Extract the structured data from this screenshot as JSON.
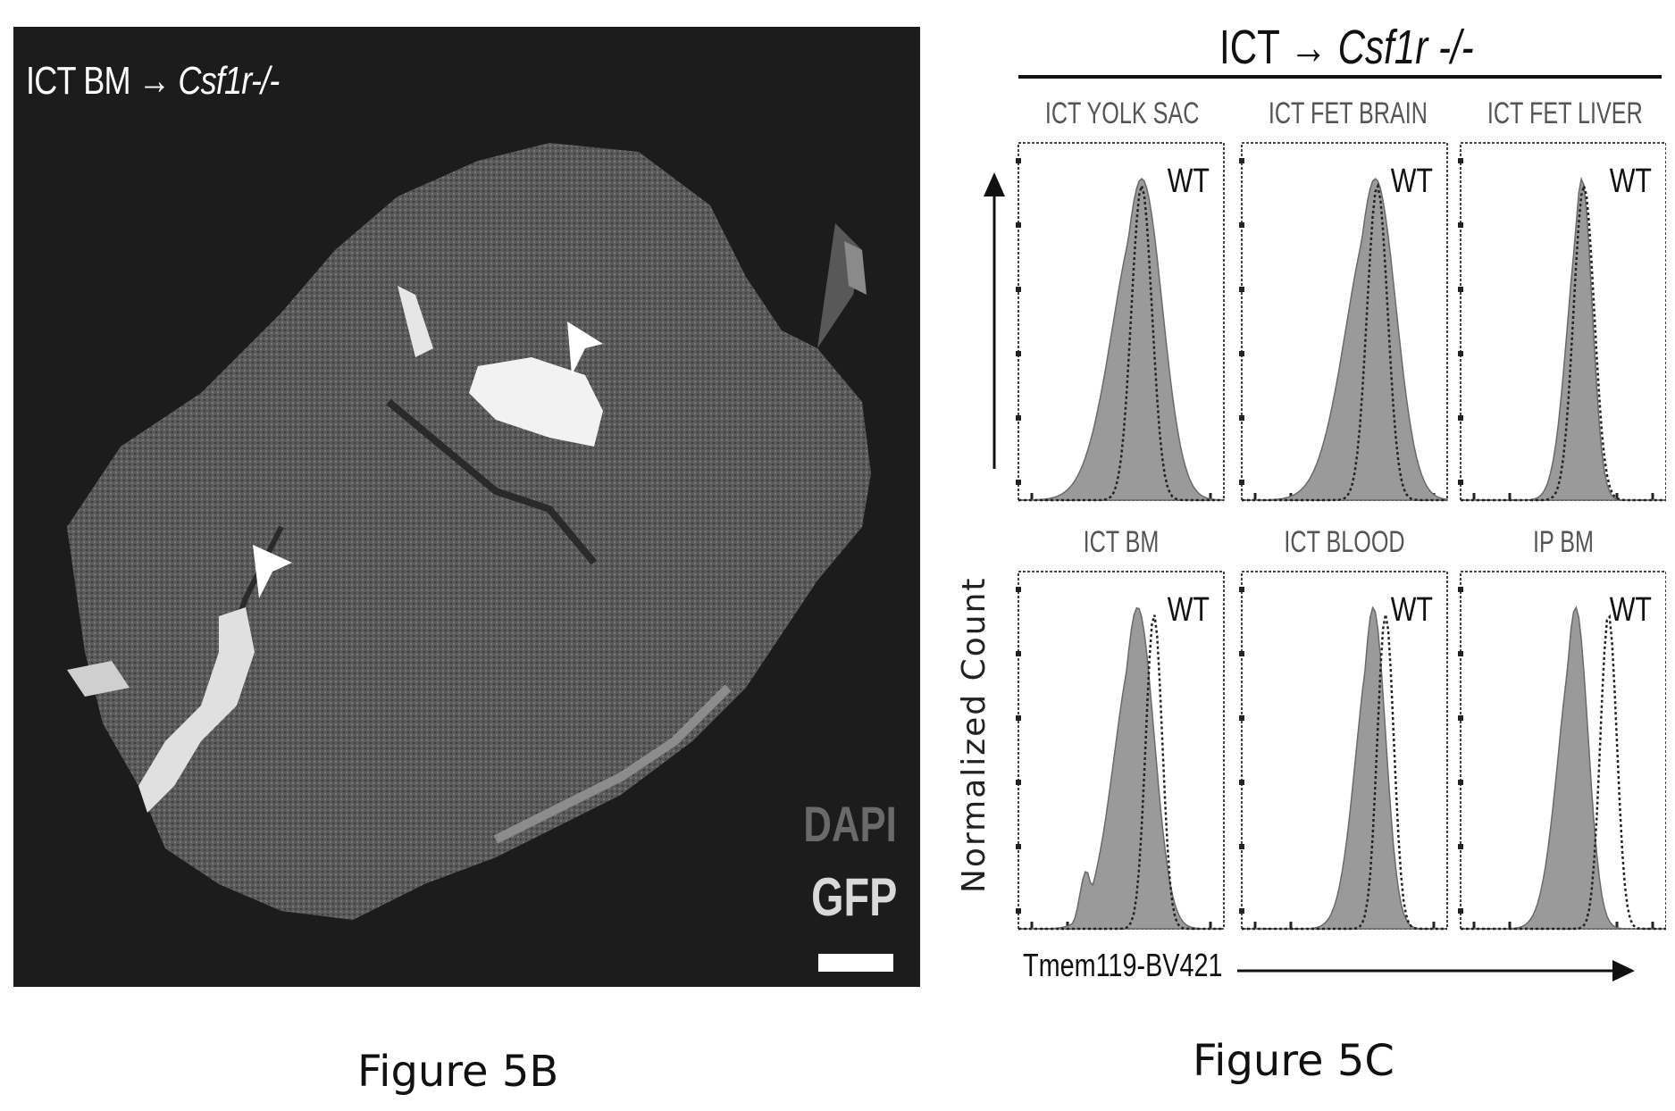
{
  "figure_5b": {
    "title_prefix": "ICT BM → ",
    "title_italic": "Csf1r-/-",
    "legend_dapi": "DAPI",
    "legend_gfp": "GFP",
    "caption": "Figure 5B",
    "colors": {
      "background": "#1c1c1c",
      "tissue": "#5e5e5e",
      "gfp": "#f2f2f2"
    }
  },
  "figure_5c": {
    "title_prefix": "ICT → ",
    "title_italic": "Csf1r -/-",
    "caption": "Figure 5C",
    "chart_data": {
      "type": "area",
      "xlabel": "Tmem119-BV421",
      "ylabel": "Normalized Count",
      "reference_label": "WT",
      "panels": [
        {
          "name": "ICT YOLK SAC",
          "label": "ICT YOLK SAC",
          "sample_peak": 0.6,
          "sample_width": 0.1,
          "wt_peak": 0.6,
          "wt_width": 0.05,
          "secondary_peak": null
        },
        {
          "name": "ICT FET BRAIN",
          "label": "ICT FET BRAIN",
          "sample_peak": 0.65,
          "sample_width": 0.1,
          "wt_peak": 0.66,
          "wt_width": 0.05,
          "secondary_peak": null
        },
        {
          "name": "ICT FET LIVER",
          "label": "ICT FET LIVER",
          "sample_peak": 0.59,
          "sample_width": 0.05,
          "wt_peak": 0.6,
          "wt_width": 0.05,
          "secondary_peak": null
        },
        {
          "name": "ICT BM",
          "label": "ICT BM",
          "sample_peak": 0.58,
          "sample_width": 0.08,
          "wt_peak": 0.66,
          "wt_width": 0.04,
          "secondary_peak": 0.33
        },
        {
          "name": "ICT BLOOD",
          "label": "ICT BLOOD",
          "sample_peak": 0.64,
          "sample_width": 0.06,
          "wt_peak": 0.7,
          "wt_width": 0.04,
          "secondary_peak": null
        },
        {
          "name": "IP BM",
          "label": "IP BM",
          "sample_peak": 0.56,
          "sample_width": 0.06,
          "wt_peak": 0.72,
          "wt_width": 0.04,
          "secondary_peak": null
        }
      ]
    }
  }
}
